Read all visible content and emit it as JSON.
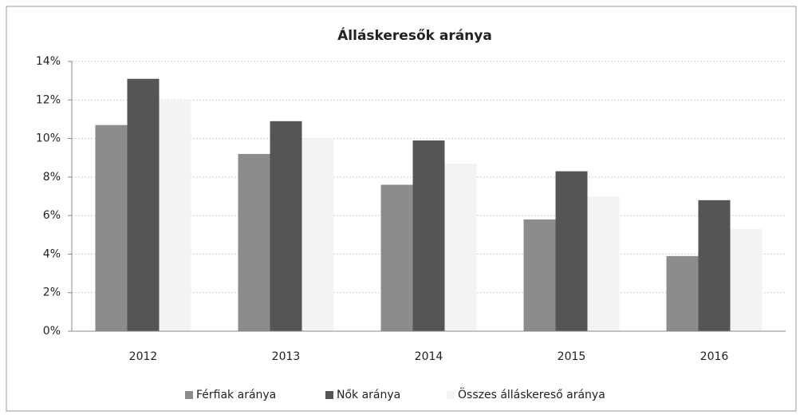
{
  "chart_data": {
    "type": "bar",
    "title": "Álláskeresők aránya",
    "categories": [
      "2012",
      "2013",
      "2014",
      "2015",
      "2016"
    ],
    "series": [
      {
        "name": "Férfiak aránya",
        "color": "#8c8c8c",
        "values": [
          10.7,
          9.2,
          7.6,
          5.8,
          3.9
        ]
      },
      {
        "name": "Nők aránya",
        "color": "#555555",
        "values": [
          13.1,
          10.9,
          9.9,
          8.3,
          6.8
        ]
      },
      {
        "name": "Összes álláskereső aránya",
        "color": "#f3f3f3",
        "values": [
          12.0,
          10.0,
          8.7,
          7.0,
          5.3
        ]
      }
    ],
    "ylim": [
      0,
      14
    ],
    "yticks": [
      {
        "value": 0,
        "label": "0%"
      },
      {
        "value": 2,
        "label": "2%"
      },
      {
        "value": 4,
        "label": "4%"
      },
      {
        "value": 6,
        "label": "6%"
      },
      {
        "value": 8,
        "label": "8%"
      },
      {
        "value": 10,
        "label": "10%"
      },
      {
        "value": 12,
        "label": "12%"
      },
      {
        "value": 14,
        "label": "14%"
      }
    ],
    "grid": true,
    "legend": "bottom"
  }
}
